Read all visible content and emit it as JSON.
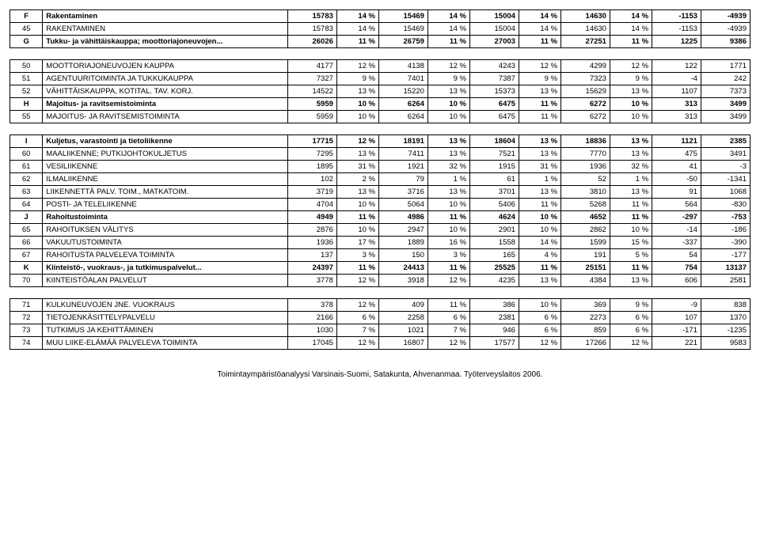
{
  "table": {
    "border_color": "#000000",
    "font_size": 9.5,
    "bg_color": "#ffffff",
    "rows": [
      {
        "bold": true,
        "code": "F",
        "desc": "Rakentaminen",
        "v": [
          "15783",
          "14 %",
          "15469",
          "14 %",
          "15004",
          "14 %",
          "14630",
          "14 %",
          "-1153",
          "-4939"
        ]
      },
      {
        "code": "45",
        "desc": "RAKENTAMINEN",
        "v": [
          "15783",
          "14 %",
          "15469",
          "14 %",
          "15004",
          "14 %",
          "14630",
          "14 %",
          "-1153",
          "-4939"
        ]
      },
      {
        "bold": true,
        "code": "G",
        "desc": "Tukku- ja vähittäiskauppa; moottoriajoneuvojen...",
        "v": [
          "26026",
          "11 %",
          "26759",
          "11 %",
          "27003",
          "11 %",
          "27251",
          "11 %",
          "1225",
          "9386"
        ]
      },
      {
        "spacer": true
      },
      {
        "code": "50",
        "desc": "MOOTTORIAJONEUVOJEN KAUPPA",
        "v": [
          "4177",
          "12 %",
          "4138",
          "12 %",
          "4243",
          "12 %",
          "4299",
          "12 %",
          "122",
          "1771"
        ]
      },
      {
        "code": "51",
        "desc": "AGENTUURITOIMINTA JA TUKKUKAUPPA",
        "v": [
          "7327",
          "9 %",
          "7401",
          "9 %",
          "7387",
          "9 %",
          "7323",
          "9 %",
          "-4",
          "242"
        ]
      },
      {
        "code": "52",
        "desc": "VÄHITTÄISKAUPPA, KOTITAL. TAV. KORJ.",
        "v": [
          "14522",
          "13 %",
          "15220",
          "13 %",
          "15373",
          "13 %",
          "15629",
          "13 %",
          "1107",
          "7373"
        ]
      },
      {
        "bold": true,
        "code": "H",
        "desc": "Majoitus- ja ravitsemistoiminta",
        "v": [
          "5959",
          "10 %",
          "6264",
          "10 %",
          "6475",
          "11 %",
          "6272",
          "10 %",
          "313",
          "3499"
        ]
      },
      {
        "code": "55",
        "desc": "MAJOITUS- JA RAVITSEMISTOIMINTA",
        "v": [
          "5959",
          "10 %",
          "6264",
          "10 %",
          "6475",
          "11 %",
          "6272",
          "10 %",
          "313",
          "3499"
        ]
      },
      {
        "spacer": true
      },
      {
        "bold": true,
        "code": "I",
        "desc": "Kuljetus, varastointi ja tietoliikenne",
        "v": [
          "17715",
          "12 %",
          "18191",
          "13 %",
          "18604",
          "13 %",
          "18836",
          "13 %",
          "1121",
          "2385"
        ]
      },
      {
        "code": "60",
        "desc": "MAALIIKENNE; PUTKIJOHTOKULJETUS",
        "v": [
          "7295",
          "13 %",
          "7411",
          "13 %",
          "7521",
          "13 %",
          "7770",
          "13 %",
          "475",
          "3491"
        ]
      },
      {
        "code": "61",
        "desc": "VESILIIKENNE",
        "v": [
          "1895",
          "31 %",
          "1921",
          "32 %",
          "1915",
          "31 %",
          "1936",
          "32 %",
          "41",
          "-3"
        ]
      },
      {
        "code": "62",
        "desc": "ILMALIIKENNE",
        "v": [
          "102",
          "2 %",
          "79",
          "1 %",
          "61",
          "1 %",
          "52",
          "1 %",
          "-50",
          "-1341"
        ]
      },
      {
        "code": "63",
        "desc": "LIIKENNETTÄ PALV. TOIM., MATKATOIM.",
        "v": [
          "3719",
          "13 %",
          "3716",
          "13 %",
          "3701",
          "13 %",
          "3810",
          "13 %",
          "91",
          "1068"
        ]
      },
      {
        "code": "64",
        "desc": "POSTI- JA TELELIIKENNE",
        "v": [
          "4704",
          "10 %",
          "5064",
          "10 %",
          "5406",
          "11 %",
          "5268",
          "11 %",
          "564",
          "-830"
        ]
      },
      {
        "bold": true,
        "code": "J",
        "desc": "Rahoitustoiminta",
        "v": [
          "4949",
          "11 %",
          "4986",
          "11 %",
          "4624",
          "10 %",
          "4652",
          "11 %",
          "-297",
          "-753"
        ]
      },
      {
        "code": "65",
        "desc": "RAHOITUKSEN VÄLITYS",
        "v": [
          "2876",
          "10 %",
          "2947",
          "10 %",
          "2901",
          "10 %",
          "2862",
          "10 %",
          "-14",
          "-186"
        ]
      },
      {
        "code": "66",
        "desc": "VAKUUTUSTOIMINTA",
        "v": [
          "1936",
          "17 %",
          "1889",
          "16 %",
          "1558",
          "14 %",
          "1599",
          "15 %",
          "-337",
          "-390"
        ]
      },
      {
        "code": "67",
        "desc": "RAHOITUSTA PALVELEVA TOIMINTA",
        "v": [
          "137",
          "3 %",
          "150",
          "3 %",
          "165",
          "4 %",
          "191",
          "5 %",
          "54",
          "-177"
        ]
      },
      {
        "bold": true,
        "code": "K",
        "desc": "Kiinteistö-, vuokraus-, ja tutkimuspalvelut...",
        "v": [
          "24397",
          "11 %",
          "24413",
          "11 %",
          "25525",
          "11 %",
          "25151",
          "11 %",
          "754",
          "13137"
        ]
      },
      {
        "code": "70",
        "desc": "KIINTEISTÖALAN PALVELUT",
        "v": [
          "3778",
          "12 %",
          "3918",
          "12 %",
          "4235",
          "13 %",
          "4384",
          "13 %",
          "606",
          "2581"
        ]
      },
      {
        "spacer": true
      },
      {
        "code": "71",
        "desc": "KULKUNEUVOJEN JNE. VUOKRAUS",
        "v": [
          "378",
          "12 %",
          "409",
          "11 %",
          "386",
          "10 %",
          "369",
          "9 %",
          "-9",
          "838"
        ]
      },
      {
        "code": "72",
        "desc": "TIETOJENKÄSITTELYPALVELU",
        "v": [
          "2166",
          "6 %",
          "2258",
          "6 %",
          "2381",
          "6 %",
          "2273",
          "6 %",
          "107",
          "1370"
        ]
      },
      {
        "code": "73",
        "desc": "TUTKIMUS JA KEHITTÄMINEN",
        "v": [
          "1030",
          "7 %",
          "1021",
          "7 %",
          "946",
          "6 %",
          "859",
          "6 %",
          "-171",
          "-1235"
        ]
      },
      {
        "code": "74",
        "desc": "MUU LIIKE-ELÄMÄÄ PALVELEVA TOIMINTA",
        "v": [
          "17045",
          "12 %",
          "16807",
          "12 %",
          "17577",
          "12 %",
          "17266",
          "12 %",
          "221",
          "9583"
        ]
      }
    ]
  },
  "footer": "Toimintaympäristöanalyysi Varsinais-Suomi, Satakunta, Ahvenanmaa. Työterveyslaitos 2006."
}
